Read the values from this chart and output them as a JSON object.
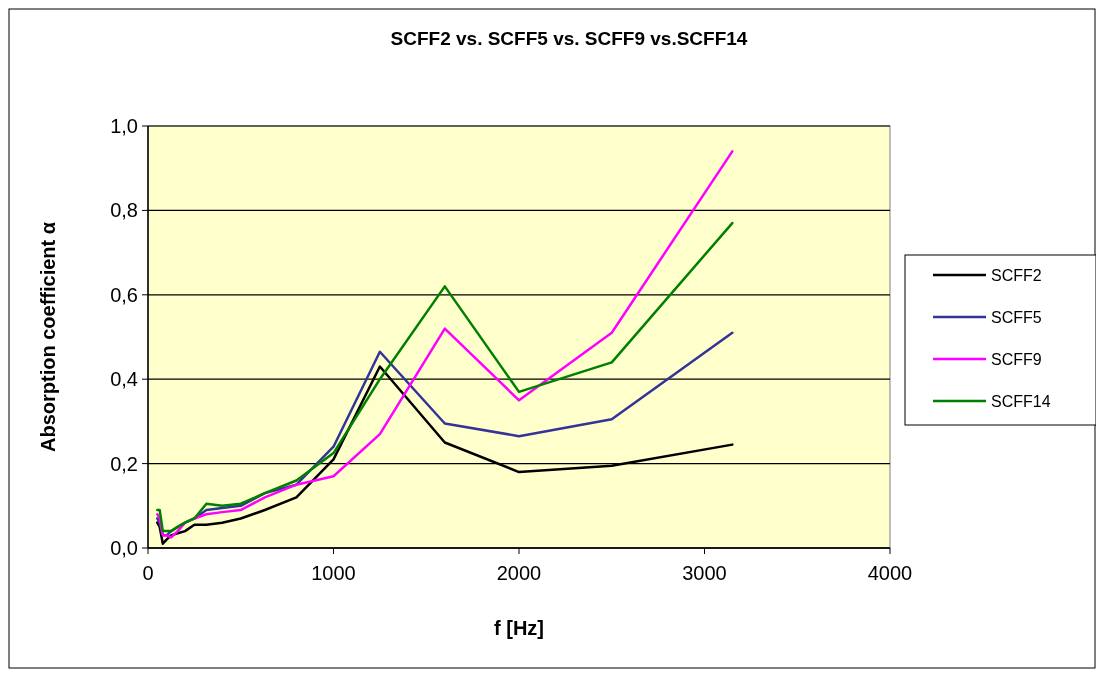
{
  "chart_data": {
    "type": "line",
    "title": "SCFF2 vs. SCFF5 vs. SCFF9 vs.SCFF14",
    "xlabel": "f [Hz]",
    "ylabel": "Absorption coefficient  α",
    "x": [
      50,
      63,
      80,
      100,
      125,
      160,
      200,
      250,
      315,
      400,
      500,
      630,
      800,
      1000,
      1250,
      1600,
      2000,
      2500,
      3150
    ],
    "series": [
      {
        "name": "SCFF2",
        "color": "#000000",
        "values": [
          0.06,
          0.05,
          0.01,
          0.02,
          0.03,
          0.035,
          0.04,
          0.055,
          0.055,
          0.06,
          0.07,
          0.09,
          0.12,
          0.21,
          0.43,
          0.25,
          0.18,
          0.195,
          0.245
        ]
      },
      {
        "name": "SCFF5",
        "color": "#333399",
        "values": [
          0.07,
          0.06,
          0.03,
          0.03,
          0.04,
          0.05,
          0.06,
          0.07,
          0.09,
          0.095,
          0.1,
          0.13,
          0.15,
          0.24,
          0.465,
          0.295,
          0.265,
          0.305,
          0.51
        ]
      },
      {
        "name": "SCFF9",
        "color": "#ff00ff",
        "values": [
          0.08,
          0.07,
          0.03,
          0.03,
          0.025,
          0.04,
          0.06,
          0.07,
          0.08,
          0.085,
          0.09,
          0.12,
          0.15,
          0.17,
          0.27,
          0.52,
          0.35,
          0.51,
          0.94
        ]
      },
      {
        "name": "SCFF14",
        "color": "#008000",
        "values": [
          0.09,
          0.09,
          0.04,
          0.04,
          0.04,
          0.05,
          0.06,
          0.07,
          0.105,
          0.1,
          0.105,
          0.13,
          0.16,
          0.225,
          0.4,
          0.62,
          0.37,
          0.44,
          0.77
        ]
      }
    ],
    "xlim": [
      0,
      4000
    ],
    "xticks": [
      0,
      1000,
      2000,
      3000,
      4000
    ],
    "ylim": [
      0,
      1
    ],
    "yticks": [
      {
        "value": 0,
        "label": "0,0"
      },
      {
        "value": 0.2,
        "label": "0,2"
      },
      {
        "value": 0.4,
        "label": "0,4"
      },
      {
        "value": 0.6,
        "label": "0,6"
      },
      {
        "value": 0.8,
        "label": "0,8"
      },
      {
        "value": 1,
        "label": "1,0"
      }
    ],
    "grid": "y",
    "legend": "right",
    "marker": "none",
    "line_style": "solid"
  }
}
